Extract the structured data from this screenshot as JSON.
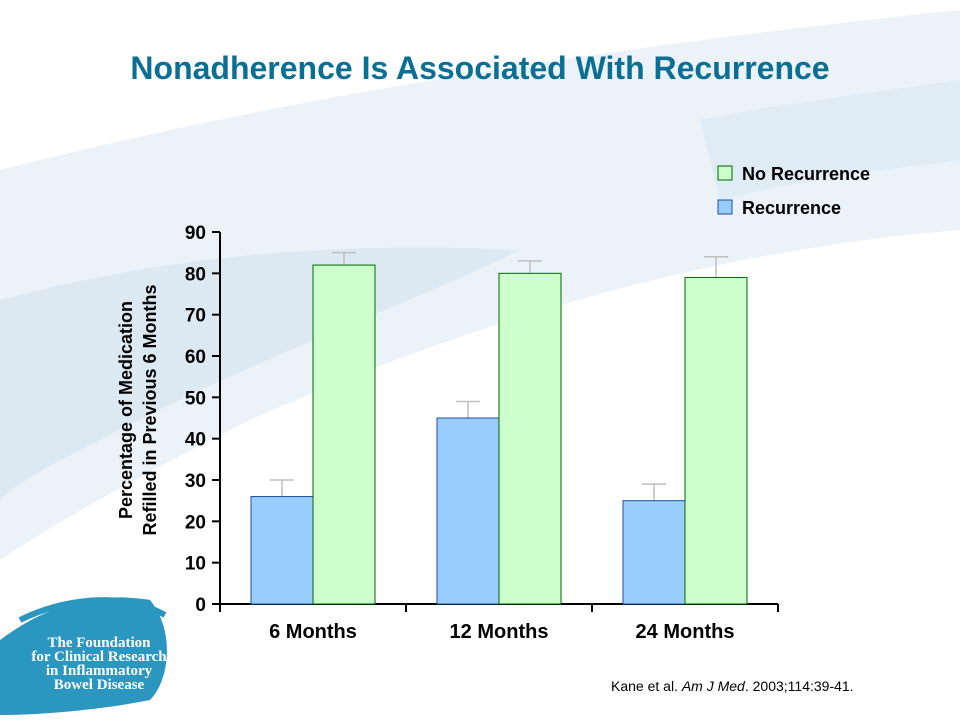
{
  "slide": {
    "title": "Nonadherence Is Associated With Recurrence",
    "citation_authors": "Kane et al. ",
    "citation_journal": "Am J Med",
    "citation_rest": ". 2003;114:39-41.",
    "logo_lines": [
      "The Foundation",
      "for Clinical Research",
      "in Inflammatory",
      "Bowel Disease"
    ],
    "colors": {
      "title": "#0a6f93",
      "recurrence": "#99ccff",
      "no_recurrence": "#ccffcc",
      "no_recurrence_border": "#006600",
      "recurrence_border": "#1f4fa0",
      "logo": "#2b97c0"
    }
  },
  "chart_data": {
    "type": "bar",
    "ylabel": [
      "Percentage of Medication",
      "Refilled in Previous 6 Months"
    ],
    "ylim": [
      0,
      90
    ],
    "yticks": [
      0,
      10,
      20,
      30,
      40,
      50,
      60,
      70,
      80,
      90
    ],
    "categories": [
      "6 Months",
      "12 Months",
      "24 Months"
    ],
    "legend_position": "top-right",
    "series": [
      {
        "name": "Recurrence",
        "values": [
          26,
          45,
          25
        ],
        "error_upper": [
          30,
          49,
          29
        ]
      },
      {
        "name": "No Recurrence",
        "values": [
          82,
          80,
          79
        ],
        "error_upper": [
          85,
          83,
          84
        ]
      }
    ],
    "legend_order": [
      "No Recurrence",
      "Recurrence"
    ]
  }
}
